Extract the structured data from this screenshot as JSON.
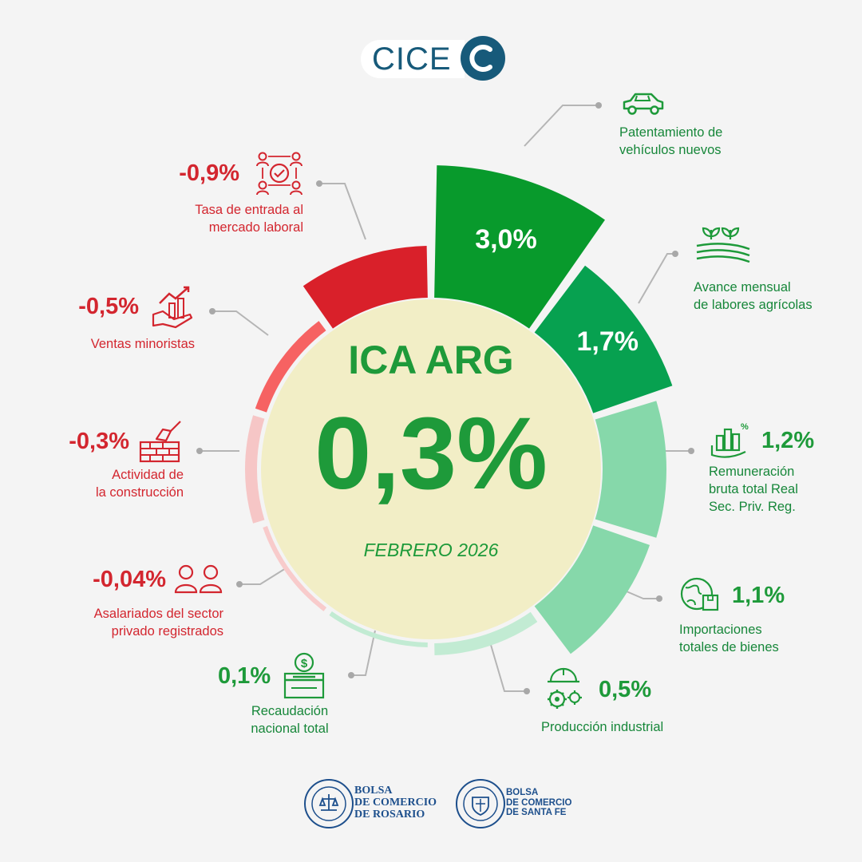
{
  "logo": {
    "text": "CICE"
  },
  "center": {
    "title": "ICA ARG",
    "value": "0,3%",
    "period": "FEBRERO 2026"
  },
  "colors": {
    "positive": "#1e9a3a",
    "negative": "#d3262f",
    "center_fill": "#f2eec6"
  },
  "indicators": [
    {
      "value_label": "3,0%",
      "label_lines": [
        "Patentamiento de",
        "vehículos nuevos"
      ],
      "icon": "car-icon"
    },
    {
      "value_label": "1,7%",
      "label_lines": [
        "Avance mensual",
        "de labores agrícolas"
      ],
      "icon": "crop-field-icon"
    },
    {
      "value_label": "1,2%",
      "label_lines": [
        "Remuneración",
        "bruta total Real",
        "Sec. Priv. Reg."
      ],
      "icon": "salary-growth-icon"
    },
    {
      "value_label": "1,1%",
      "label_lines": [
        "Importaciones",
        "totales de bienes"
      ],
      "icon": "globe-box-icon"
    },
    {
      "value_label": "0,5%",
      "label_lines": [
        "Producción industrial"
      ],
      "icon": "industry-gears-icon"
    },
    {
      "value_label": "0,1%",
      "label_lines": [
        "Recaudación",
        "nacional total"
      ],
      "icon": "tax-box-icon"
    },
    {
      "value_label": "-0,04%",
      "label_lines": [
        "Asalariados del sector",
        "privado registrados"
      ],
      "icon": "workers-icon"
    },
    {
      "value_label": "-0,3%",
      "label_lines": [
        "Actividad de",
        "la construcción"
      ],
      "icon": "bricks-trowel-icon"
    },
    {
      "value_label": "-0,5%",
      "label_lines": [
        "Ventas minoristas"
      ],
      "icon": "sales-chart-hand-icon"
    },
    {
      "value_label": "-0,9%",
      "label_lines": [
        "Tasa de entrada al",
        "mercado laboral"
      ],
      "icon": "labor-network-icon"
    }
  ],
  "chart_data": {
    "type": "pie",
    "title": "ICA ARG",
    "subtitle": "FEBRERO 2026",
    "center_value": 0.3,
    "categories": [
      "Patentamiento de vehículos nuevos",
      "Avance mensual de labores agrícolas",
      "Remuneración bruta total Real Sec. Priv. Reg.",
      "Importaciones totales de bienes",
      "Producción industrial",
      "Recaudación nacional total",
      "Asalariados del sector privado registrados",
      "Actividad de la construcción",
      "Ventas minoristas",
      "Tasa de entrada al mercado laboral"
    ],
    "values": [
      3.0,
      1.7,
      1.2,
      1.1,
      0.5,
      0.1,
      -0.04,
      -0.3,
      -0.5,
      -0.9
    ],
    "segment_colors": [
      "#089a2c",
      "#07a150",
      "#86d8aa",
      "#86d8aa",
      "#c2ebd3",
      "#c2ebd3",
      "#f8cbcb",
      "#f6c6c6",
      "#f66262",
      "#d9202a"
    ]
  },
  "footer": {
    "org1_lines": [
      "BOLSA",
      "DE COMERCIO",
      "DE ROSARIO"
    ],
    "org2_lines": [
      "BOLSA",
      "DE COMERCIO",
      "DE SANTA FE"
    ]
  }
}
